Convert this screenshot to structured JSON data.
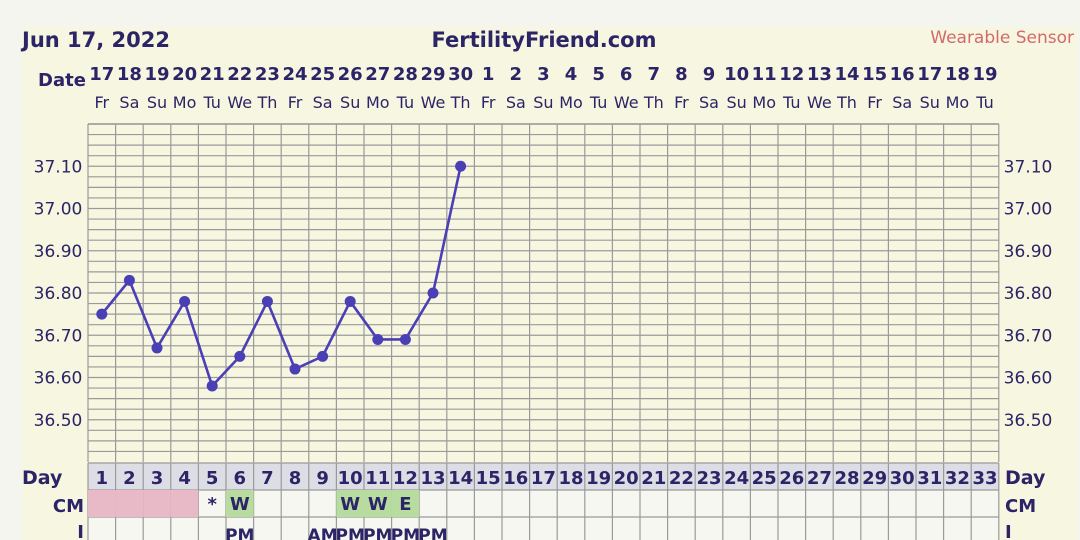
{
  "header": {
    "date": "Jun 17, 2022",
    "site": "FertilityFriend.com",
    "sensor": "Wearable Sensor"
  },
  "row_labels": {
    "date": "Date",
    "day": "Day",
    "cm": "CM",
    "i": "I"
  },
  "colors": {
    "background": "#f5f5f0",
    "chart_bg": "#f7f6e1",
    "grid": "#9a9a9a",
    "line": "#4b3fb5",
    "text": "#2b2466",
    "sensor": "#d36a6a",
    "menstruation": "#e8b9c6",
    "cm_fertile": "#b8dca0"
  },
  "chart_data": {
    "type": "line",
    "columns": 33,
    "date_numbers": [
      "17",
      "18",
      "19",
      "20",
      "21",
      "22",
      "23",
      "24",
      "25",
      "26",
      "27",
      "28",
      "29",
      "30",
      "1",
      "2",
      "3",
      "4",
      "5",
      "6",
      "7",
      "8",
      "9",
      "10",
      "11",
      "12",
      "13",
      "14",
      "15",
      "16",
      "17",
      "18",
      "19"
    ],
    "weekdays": [
      "Fr",
      "Sa",
      "Su",
      "Mo",
      "Tu",
      "We",
      "Th",
      "Fr",
      "Sa",
      "Su",
      "Mo",
      "Tu",
      "We",
      "Th",
      "Fr",
      "Sa",
      "Su",
      "Mo",
      "Tu",
      "We",
      "Th",
      "Fr",
      "Sa",
      "Su",
      "Mo",
      "Tu",
      "We",
      "Th",
      "Fr",
      "Sa",
      "Su",
      "Mo",
      "Tu"
    ],
    "cycle_days": [
      "1",
      "2",
      "3",
      "4",
      "5",
      "6",
      "7",
      "8",
      "9",
      "10",
      "11",
      "12",
      "13",
      "14",
      "15",
      "16",
      "17",
      "18",
      "19",
      "20",
      "21",
      "22",
      "23",
      "24",
      "25",
      "26",
      "27",
      "28",
      "29",
      "30",
      "31",
      "32",
      "33"
    ],
    "y_ticks": [
      "37.10",
      "37.00",
      "36.90",
      "36.80",
      "36.70",
      "36.60",
      "36.50"
    ],
    "ylim": [
      36.4,
      37.2
    ],
    "series": [
      {
        "x": [
          1,
          2,
          3,
          4,
          5,
          6,
          7,
          8,
          9,
          10,
          11,
          12,
          13,
          14
        ],
        "y": [
          36.75,
          36.83,
          36.67,
          36.78,
          36.58,
          36.65,
          36.78,
          36.62,
          36.65,
          36.78,
          36.69,
          36.69,
          36.8,
          37.1
        ]
      }
    ],
    "cm_row": [
      {
        "day": 1,
        "fill": "menstruation",
        "label": ""
      },
      {
        "day": 2,
        "fill": "menstruation",
        "label": ""
      },
      {
        "day": 3,
        "fill": "menstruation",
        "label": ""
      },
      {
        "day": 4,
        "fill": "menstruation",
        "label": ""
      },
      {
        "day": 5,
        "fill": "",
        "label": "*"
      },
      {
        "day": 6,
        "fill": "cm_fertile",
        "label": "W"
      },
      {
        "day": 10,
        "fill": "cm_fertile",
        "label": "W"
      },
      {
        "day": 11,
        "fill": "cm_fertile",
        "label": "W"
      },
      {
        "day": 12,
        "fill": "cm_fertile",
        "label": "E"
      }
    ],
    "i_row": [
      {
        "day": 6,
        "label": "PM"
      },
      {
        "day": 9,
        "label": "AM"
      },
      {
        "day": 10,
        "label": "PM"
      },
      {
        "day": 11,
        "label": "PM"
      },
      {
        "day": 12,
        "label": "PM"
      },
      {
        "day": 13,
        "label": "PM"
      }
    ]
  }
}
